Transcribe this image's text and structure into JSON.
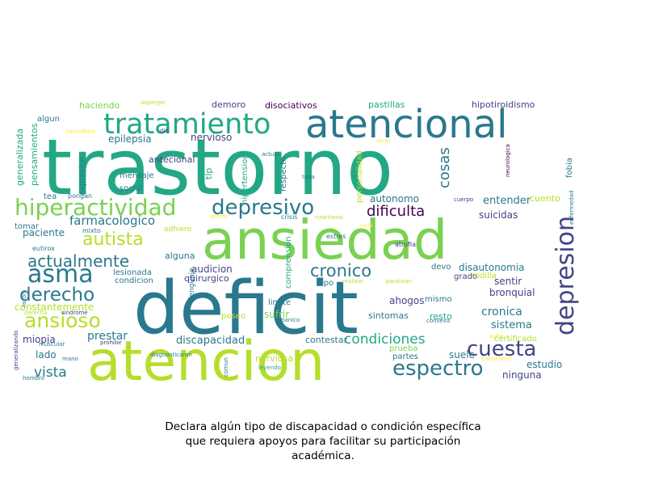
{
  "colors": {
    "green_light": "#b5de2b",
    "green": "#7ad151",
    "green_teal": "#22a884",
    "teal": "#2a788e",
    "blue": "#414487",
    "purple": "#440154",
    "teal_dark": "#23888e",
    "yellow": "#fde725"
  },
  "caption": {
    "line1": "Declara algún tipo de discapacidad o condición específica",
    "line2": "que requiera apoyos para facilitar su participación",
    "line3": "académica."
  },
  "words": [
    {
      "text": "trastorno",
      "color": "#22a884"
    },
    {
      "text": "ansiedad",
      "color": "#7ad151"
    },
    {
      "text": "deficit",
      "color": "#2a788e"
    },
    {
      "text": "atencion",
      "color": "#b5de2b"
    },
    {
      "text": "atencional",
      "color": "#2a788e"
    },
    {
      "text": "tratamiento",
      "color": "#22a884"
    },
    {
      "text": "hiperactividad",
      "color": "#7ad151"
    },
    {
      "text": "depresivo",
      "color": "#2a788e"
    },
    {
      "text": "asma",
      "color": "#2a788e"
    },
    {
      "text": "autista",
      "color": "#b5de2b"
    },
    {
      "text": "actualmente",
      "color": "#2a788e"
    },
    {
      "text": "derecho",
      "color": "#2a788e"
    },
    {
      "text": "ansioso",
      "color": "#b5de2b"
    },
    {
      "text": "cronico",
      "color": "#2a788e"
    },
    {
      "text": "depresion",
      "color": "#414487"
    },
    {
      "text": "cuesta",
      "color": "#414487"
    },
    {
      "text": "espectro",
      "color": "#2a788e"
    },
    {
      "text": "dificulta",
      "color": "#440154"
    },
    {
      "text": "condiciones",
      "color": "#22a884"
    },
    {
      "text": "cosas",
      "color": "#2a788e"
    },
    {
      "text": "farmacologico",
      "color": "#2a788e"
    },
    {
      "text": "vista",
      "color": "#2a788e"
    },
    {
      "text": "epilepsia",
      "color": "#2a788e"
    },
    {
      "text": "entender",
      "color": "#2a788e"
    },
    {
      "text": "cronica",
      "color": "#2a788e"
    },
    {
      "text": "nervioso",
      "color": "#414487"
    },
    {
      "text": "suicidas",
      "color": "#414487"
    },
    {
      "text": "disautonomia",
      "color": "#2a788e"
    },
    {
      "text": "autonomo",
      "color": "#2a788e"
    },
    {
      "text": "sistema",
      "color": "#2a788e"
    },
    {
      "text": "prestar",
      "color": "#2a788e"
    },
    {
      "text": "discapacidad",
      "color": "#2a788e"
    },
    {
      "text": "miopia",
      "color": "#414487"
    },
    {
      "text": "suele",
      "color": "#2a788e"
    },
    {
      "text": "estudio",
      "color": "#2a788e"
    },
    {
      "text": "ninguna",
      "color": "#414487"
    },
    {
      "text": "ahogos",
      "color": "#414487"
    },
    {
      "text": "bronquial",
      "color": "#414487"
    },
    {
      "text": "sentir",
      "color": "#414487"
    },
    {
      "text": "audicion",
      "color": "#414487"
    },
    {
      "text": "sufrir",
      "color": "#7ad151"
    },
    {
      "text": "constantemente",
      "color": "#b5de2b"
    },
    {
      "text": "lado",
      "color": "#2a788e"
    },
    {
      "text": "paciente",
      "color": "#2a788e"
    },
    {
      "text": "disociativos",
      "color": "#440154"
    },
    {
      "text": "pastillas",
      "color": "#22a884"
    },
    {
      "text": "hipotiroidismo",
      "color": "#414487"
    },
    {
      "text": "haciendo",
      "color": "#7ad151"
    },
    {
      "text": "demoro",
      "color": "#414487"
    },
    {
      "text": "generalizada",
      "color": "#22a884"
    },
    {
      "text": "pensamientos",
      "color": "#22a884"
    },
    {
      "text": "algun",
      "color": "#2a788e"
    },
    {
      "text": "hemofilico",
      "color": "#fde725"
    },
    {
      "text": "dio",
      "color": "#414487"
    },
    {
      "text": "asperger",
      "color": "#b5de2b"
    },
    {
      "text": "expresion",
      "color": "#2a788e"
    },
    {
      "text": "antecional",
      "color": "#414487"
    },
    {
      "text": "mensaje",
      "color": "#2a788e"
    },
    {
      "text": "social",
      "color": "#2a788e"
    },
    {
      "text": "tlp",
      "color": "#22a884"
    },
    {
      "text": "pongan",
      "color": "#2a788e"
    },
    {
      "text": "hipertension",
      "color": "#22a884"
    },
    {
      "text": "respecto",
      "color": "#2a788e"
    },
    {
      "text": "actual",
      "color": "#2a788e"
    },
    {
      "text": "toda",
      "color": "#2a788e"
    },
    {
      "text": "personalidad",
      "color": "#b5de2b"
    },
    {
      "text": "veces",
      "color": "#fde725"
    },
    {
      "text": "neurologica",
      "color": "#440154"
    },
    {
      "text": "fobia",
      "color": "#2a788e"
    },
    {
      "text": "cuento",
      "color": "#b5de2b"
    },
    {
      "text": "tea",
      "color": "#2a788e"
    },
    {
      "text": "tomar",
      "color": "#2a788e"
    },
    {
      "text": "eutirox",
      "color": "#2a788e"
    },
    {
      "text": "mixto",
      "color": "#2a788e"
    },
    {
      "text": "adhiero",
      "color": "#b5de2b"
    },
    {
      "text": "doctor",
      "color": "#fde725"
    },
    {
      "text": "crisis",
      "color": "#2a788e"
    },
    {
      "text": "rizartrosis",
      "color": "#b5de2b"
    },
    {
      "text": "corta",
      "color": "#fde725"
    },
    {
      "text": "estres",
      "color": "#2a788e"
    },
    {
      "text": "cuerpo",
      "color": "#414487"
    },
    {
      "text": "enfermedad",
      "color": "#2a788e"
    },
    {
      "text": "atrofia",
      "color": "#414487"
    },
    {
      "text": "alguna",
      "color": "#2a788e"
    },
    {
      "text": "lesionada",
      "color": "#2a788e"
    },
    {
      "text": "condicion",
      "color": "#2a788e"
    },
    {
      "text": "quirurgico",
      "color": "#414487"
    },
    {
      "text": "lenguaje",
      "color": "#2a788e"
    },
    {
      "text": "comprension",
      "color": "#22a884"
    },
    {
      "text": "limite",
      "color": "#2a788e"
    },
    {
      "text": "tipo",
      "color": "#2a788e"
    },
    {
      "text": "realizar",
      "color": "#b5de2b"
    },
    {
      "text": "paralizan",
      "color": "#b5de2b"
    },
    {
      "text": "grado",
      "color": "#414487"
    },
    {
      "text": "rodilla",
      "color": "#b5de2b"
    },
    {
      "text": "devo",
      "color": "#2a788e"
    },
    {
      "text": "mismo",
      "color": "#2a788e"
    },
    {
      "text": "resto",
      "color": "#22a884"
    },
    {
      "text": "conlleva",
      "color": "#2a788e"
    },
    {
      "text": "poseo",
      "color": "#b5de2b"
    },
    {
      "text": "sintomas",
      "color": "#2a788e"
    },
    {
      "text": "panico",
      "color": "#2a788e"
    },
    {
      "text": "razon",
      "color": "#2a788e"
    },
    {
      "text": "derecha",
      "color": "#b5de2b"
    },
    {
      "text": "sindrome",
      "color": "#414487"
    },
    {
      "text": "muscular",
      "color": "#2a788e"
    },
    {
      "text": "prohibe",
      "color": "#414487"
    },
    {
      "text": "mano",
      "color": "#2a788e"
    },
    {
      "text": "diagnosticaron",
      "color": "#2a788e"
    },
    {
      "text": "generalizando",
      "color": "#414487"
    },
    {
      "text": "hombro",
      "color": "#2a788e"
    },
    {
      "text": "comun",
      "color": "#2a788e"
    },
    {
      "text": "nerviosa",
      "color": "#b5de2b"
    },
    {
      "text": "leyendo",
      "color": "#22a884"
    },
    {
      "text": "contestar",
      "color": "#2a788e"
    },
    {
      "text": "prueba",
      "color": "#7ad151"
    },
    {
      "text": "partes",
      "color": "#2a788e"
    },
    {
      "text": "sufro",
      "color": "#fde725"
    },
    {
      "text": "certificado",
      "color": "#b5de2b"
    },
    {
      "text": "transtorno",
      "color": "#fde725"
    }
  ]
}
